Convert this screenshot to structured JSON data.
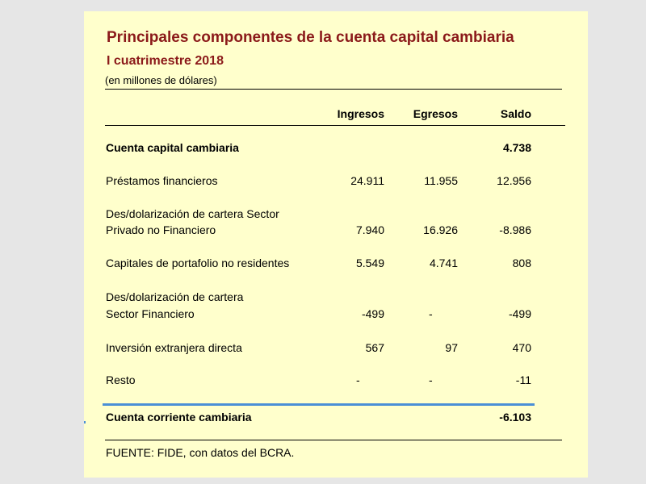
{
  "title": "Principales componentes de la cuenta capital cambiaria",
  "subtitle": "I cuatrimestre  2018",
  "units": "(en millones de dólares)",
  "columns": [
    "Ingresos",
    "Egresos",
    "Saldo"
  ],
  "rows": [
    {
      "label": "Cuenta capital cambiaria",
      "ingresos": "",
      "egresos": "",
      "saldo": "4.738",
      "bold": true
    },
    {
      "label": "Préstamos financieros",
      "ingresos": "24.911",
      "egresos": "11.955",
      "saldo": "12.956"
    },
    {
      "label_line1": "Des/dolarización de cartera Sector",
      "label": "Privado no Financiero",
      "ingresos": "7.940",
      "egresos": "16.926",
      "saldo": "-8.986"
    },
    {
      "label": "Capitales de portafolio no residentes",
      "ingresos": "5.549",
      "egresos": "4.741",
      "saldo": "808"
    },
    {
      "label_line1": "Des/dolarización de cartera",
      "label": "Sector Financiero",
      "ingresos": "-499",
      "egresos": "-",
      "saldo": "-499"
    },
    {
      "label": "Inversión extranjera directa",
      "ingresos": "567",
      "egresos": "97",
      "saldo": "470"
    },
    {
      "label": "Resto",
      "ingresos": "-",
      "egresos": "-",
      "saldo": "-11"
    },
    {
      "label": "Cuenta corriente cambiaria",
      "ingresos": "",
      "egresos": "",
      "saldo": "-6.103",
      "bold": true
    }
  ],
  "source": "FUENTE: FIDE, con datos del BCRA.",
  "colors": {
    "title": "#8b1a1a",
    "panel": "#ffffcc",
    "accent_rule": "#4a8fd6"
  }
}
